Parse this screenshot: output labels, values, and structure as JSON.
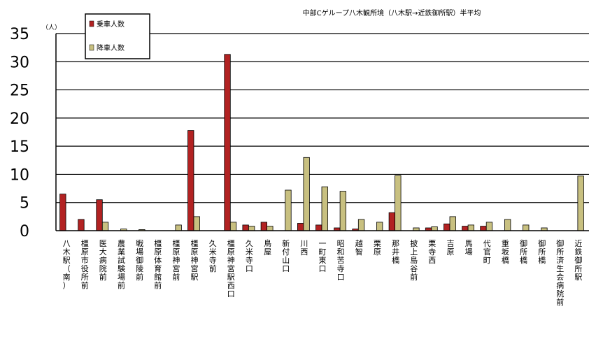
{
  "chart_data": {
    "type": "bar",
    "title": "中部Cゲループ八木観所境（八木駅→近鉄御所駅）半平均",
    "ylabel": "（人）",
    "ylim": [
      0,
      35
    ],
    "yticks": [
      0,
      5,
      10,
      15,
      20,
      25,
      30,
      35
    ],
    "grid": true,
    "legend_position": "top-left",
    "categories": [
      "八木駅（南）",
      "橿原市役所前",
      "医大病院前",
      "農業試験場前",
      "戦場御陵前",
      "橿原体育館前",
      "橿原神宮前",
      "橿原神宮駅",
      "久米寺前",
      "橿原神宮駅西口",
      "久米寺口",
      "鳥屋",
      "新付山口",
      "川西",
      "一町東口",
      "昭和苦寺口",
      "越智",
      "栗原",
      "那井橋",
      "披上島谷前",
      "栗寺西",
      "吉原",
      "馬場",
      "代官町",
      "重坂橋",
      "御所橋",
      "御所橋",
      "御所済生会病院前",
      "近鉄御所駅"
    ],
    "series": [
      {
        "name": "乗車人数",
        "color": "#b22222",
        "values": [
          6.5,
          2.0,
          5.5,
          0,
          0,
          0,
          0,
          17.8,
          0,
          31.3,
          1.0,
          1.5,
          0,
          1.3,
          1.0,
          0.5,
          0.3,
          0,
          3.2,
          0,
          0.5,
          1.2,
          0.8,
          0.8,
          0,
          0,
          0,
          0,
          0
        ]
      },
      {
        "name": "降車人数",
        "color": "#c8c080",
        "values": [
          0,
          0,
          1.5,
          0.3,
          0.2,
          0,
          1.0,
          2.5,
          0,
          1.5,
          0.8,
          0.8,
          7.2,
          13.0,
          7.8,
          7.0,
          2.0,
          1.5,
          9.8,
          0.5,
          0.7,
          2.5,
          1.0,
          1.5,
          2.0,
          1.0,
          0.5,
          0,
          9.7
        ]
      }
    ]
  }
}
